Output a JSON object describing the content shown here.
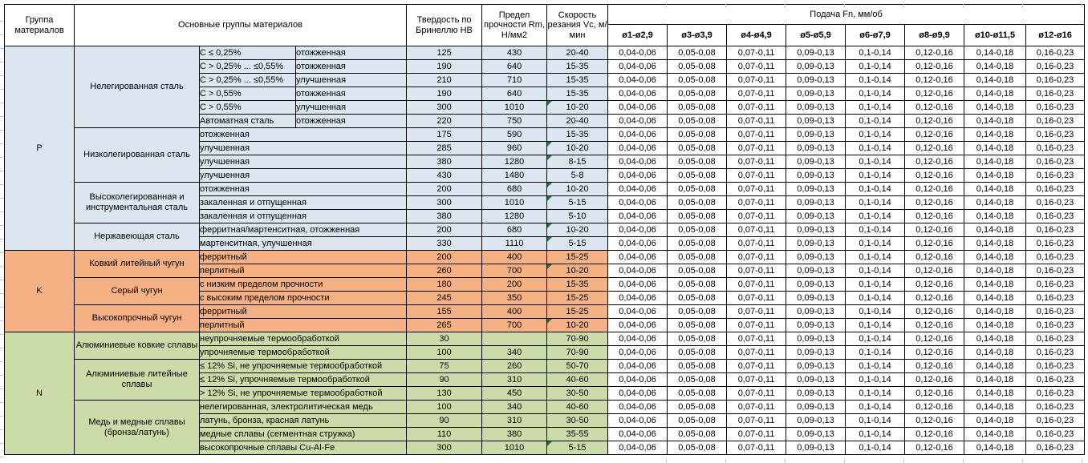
{
  "colors": {
    "group_p_fill": "#DCE6F1",
    "group_k_fill": "#F5B183",
    "group_n_fill": "#CBDCA8",
    "note_indicator": "#1F7244",
    "grid_border": "#000000"
  },
  "table": {
    "header": {
      "col_group": "Группа материалов",
      "col_main_groups": "Основные группы материалов",
      "col_hardness": "Твердость по Бринеллю HB",
      "col_strength": "Предел прочности Rm, Н/мм2",
      "col_speed": "Скорость резания Vc, м/мин",
      "feed_title": "Подача Fn, мм/об",
      "feed_columns": [
        "ø1-ø2,9",
        "ø3-ø3,9",
        "ø4-ø4,9",
        "ø5-ø5,9",
        "ø6-ø7,9",
        "ø8-ø9,9",
        "ø10-ø11,5",
        "ø12-ø16"
      ]
    },
    "feed_values": [
      "0,04-0,06",
      "0,05-0,08",
      "0,07-0,11",
      "0,09-0,13",
      "0,1-0,14",
      "0,12-0,16",
      "0,14-0,18",
      "0,16-0,23"
    ],
    "groups": [
      {
        "letter": "P",
        "color": "#DCE6F1",
        "subgroups": [
          {
            "name": "Нелегированная сталь",
            "rows": [
              {
                "d1": "C ≤ 0,25%",
                "d2": "отожженная",
                "hb": "125",
                "rm": "430",
                "vc": "20-40",
                "note": false
              },
              {
                "d1": "C > 0,25% ... ≤0,55%",
                "d2": "отожженная",
                "hb": "190",
                "rm": "640",
                "vc": "15-35",
                "note": false
              },
              {
                "d1": "C > 0,25% ... ≤0,55%",
                "d2": "улучшенная",
                "hb": "210",
                "rm": "710",
                "vc": "15-35",
                "note": false
              },
              {
                "d1": "C > 0,55%",
                "d2": "отожженная",
                "hb": "190",
                "rm": "640",
                "vc": "15-35",
                "note": false
              },
              {
                "d1": "C > 0,55%",
                "d2": "улучшенная",
                "hb": "300",
                "rm": "1010",
                "vc": "10-20",
                "note": true
              },
              {
                "d1": "Автоматная сталь",
                "d2": "отожженная",
                "hb": "220",
                "rm": "750",
                "vc": "20-40",
                "note": false
              }
            ]
          },
          {
            "name": "Низколегированная сталь",
            "rows": [
              {
                "d1": "отожженная",
                "d2": null,
                "hb": "175",
                "rm": "590",
                "vc": "15-35",
                "note": false
              },
              {
                "d1": "улучшенная",
                "d2": null,
                "hb": "285",
                "rm": "960",
                "vc": "10-20",
                "note": true
              },
              {
                "d1": "улучшенная",
                "d2": null,
                "hb": "380",
                "rm": "1280",
                "vc": "8-15",
                "note": true
              },
              {
                "d1": "улучшенная",
                "d2": null,
                "hb": "430",
                "rm": "1480",
                "vc": "5-8",
                "note": false
              }
            ]
          },
          {
            "name": "Высоколегированная и инструментальная сталь",
            "rows": [
              {
                "d1": "отожженная",
                "d2": null,
                "hb": "200",
                "rm": "680",
                "vc": "10-20",
                "note": true
              },
              {
                "d1": "закаленная и отпущенная",
                "d2": null,
                "hb": "300",
                "rm": "1010",
                "vc": "5-15",
                "note": true
              },
              {
                "d1": "закаленная и отпущенная",
                "d2": null,
                "hb": "380",
                "rm": "1280",
                "vc": "5-10",
                "note": false
              }
            ]
          },
          {
            "name": "Нержавеющая сталь",
            "rows": [
              {
                "d1": "ферритная/мартенситная, отожженная",
                "d2": null,
                "hb": "200",
                "rm": "680",
                "vc": "10-20",
                "note": true
              },
              {
                "d1": "мартенситная, улучшенная",
                "d2": null,
                "hb": "330",
                "rm": "1110",
                "vc": "5-15",
                "note": true
              }
            ]
          }
        ]
      },
      {
        "letter": "K",
        "color": "#F5B183",
        "subgroups": [
          {
            "name": "Ковкий литейный чугун",
            "rows": [
              {
                "d1": "ферритный",
                "d2": null,
                "hb": "200",
                "rm": "400",
                "vc": "15-25",
                "note": false
              },
              {
                "d1": "перлитный",
                "d2": null,
                "hb": "260",
                "rm": "700",
                "vc": "10-20",
                "note": true
              }
            ]
          },
          {
            "name": "Серый чугун",
            "rows": [
              {
                "d1": "с низким пределом прочности",
                "d2": null,
                "hb": "180",
                "rm": "200",
                "vc": "15-35",
                "note": false
              },
              {
                "d1": "с высоким пределом прочности",
                "d2": null,
                "hb": "245",
                "rm": "350",
                "vc": "15-25",
                "note": false
              }
            ]
          },
          {
            "name": "Высокопрочный чугун",
            "rows": [
              {
                "d1": "ферритный",
                "d2": null,
                "hb": "155",
                "rm": "400",
                "vc": "15-25",
                "note": false
              },
              {
                "d1": "перлитный",
                "d2": null,
                "hb": "265",
                "rm": "700",
                "vc": "10-20",
                "note": true
              }
            ]
          }
        ]
      },
      {
        "letter": "N",
        "color": "#CBDCA8",
        "subgroups": [
          {
            "name": "Алюминиевые ковкие сплавы",
            "rows": [
              {
                "d1": "неупрочняемые термообработкой",
                "d2": null,
                "hb": "30",
                "rm": "",
                "vc": "70-90",
                "note": false
              },
              {
                "d1": "упрочняемые термообработкой",
                "d2": null,
                "hb": "100",
                "rm": "340",
                "vc": "70-90",
                "note": false
              }
            ]
          },
          {
            "name": "Алюминиевые литейные сплавы",
            "rows": [
              {
                "d1": "≤ 12% Si, не упрочняемые термообработкой",
                "d2": null,
                "hb": "75",
                "rm": "260",
                "vc": "50-70",
                "note": false
              },
              {
                "d1": "≤ 12% Si, упрочняемые термообработкой",
                "d2": null,
                "hb": "90",
                "rm": "310",
                "vc": "40-60",
                "note": false
              },
              {
                "d1": "> 12% Si, не упрочняемые термообработкой",
                "d2": null,
                "hb": "130",
                "rm": "450",
                "vc": "30-50",
                "note": false
              }
            ]
          },
          {
            "name": "Медь и медные сплавы (бронза/латунь)",
            "rows": [
              {
                "d1": "нелегированная, электролитическая медь",
                "d2": null,
                "hb": "100",
                "rm": "340",
                "vc": "40-60",
                "note": false
              },
              {
                "d1": "латунь, бронза, красная латунь",
                "d2": null,
                "hb": "90",
                "rm": "310",
                "vc": "30-50",
                "note": false
              },
              {
                "d1": "медные сплавы (сегментная стружка)",
                "d2": null,
                "hb": "110",
                "rm": "380",
                "vc": "35-55",
                "note": false
              },
              {
                "d1": "высокопрочные сплавы Cu-Al-Fe",
                "d2": null,
                "hb": "300",
                "rm": "1010",
                "vc": "5-15",
                "note": true
              }
            ]
          }
        ]
      }
    ]
  }
}
